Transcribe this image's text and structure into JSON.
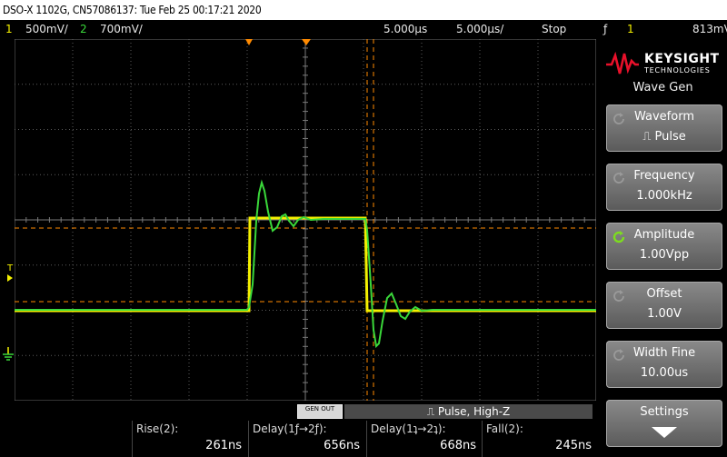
{
  "title": "DSO-X 1102G, CN57086137: Tue Feb 25 00:17:21 2020",
  "status": {
    "ch1_num": "1",
    "ch1_scale": "500mV/",
    "ch2_num": "2",
    "ch2_scale": "700mV/",
    "time_delay": "5.000µs",
    "time_scale": "5.000µs/",
    "run_state": "Stop",
    "trigger_edge": "ƒ",
    "trigger_ch": "1",
    "trigger_level": "813mV"
  },
  "brand": {
    "name": "KEYSIGHT",
    "sub": "TECHNOLOGIES"
  },
  "menu": {
    "title": "Wave Gen",
    "softkeys": [
      {
        "label": "Waveform",
        "value": "Pulse",
        "active": false
      },
      {
        "label": "Frequency",
        "value": "1.000kHz",
        "active": false
      },
      {
        "label": "Amplitude",
        "value": "1.00Vpp",
        "active": true
      },
      {
        "label": "Offset",
        "value": "1.00V",
        "active": false
      },
      {
        "label": "Width Fine",
        "value": "10.00us",
        "active": false
      },
      {
        "label": "Settings",
        "value": "",
        "active": false
      }
    ]
  },
  "wavegen_bar": {
    "gen_out": "GEN OUT",
    "summary": "Pulse, High-Z"
  },
  "measurements": [
    {
      "name": "Rise(2):",
      "value": "261ns"
    },
    {
      "name": "Delay(1ƒ→2ƒ):",
      "value": "656ns"
    },
    {
      "name": "Delay(1ʇ→2ʇ):",
      "value": "668ns"
    },
    {
      "name": "Fall(2):",
      "value": "245ns"
    }
  ],
  "colors": {
    "ch1": "#f4f000",
    "ch2": "#3ad83a",
    "cursor": "#ff8a00",
    "grid": "#5a5a5a",
    "softkey_active": "#7ddc1f"
  },
  "markers": {
    "trigger_label": "T"
  }
}
